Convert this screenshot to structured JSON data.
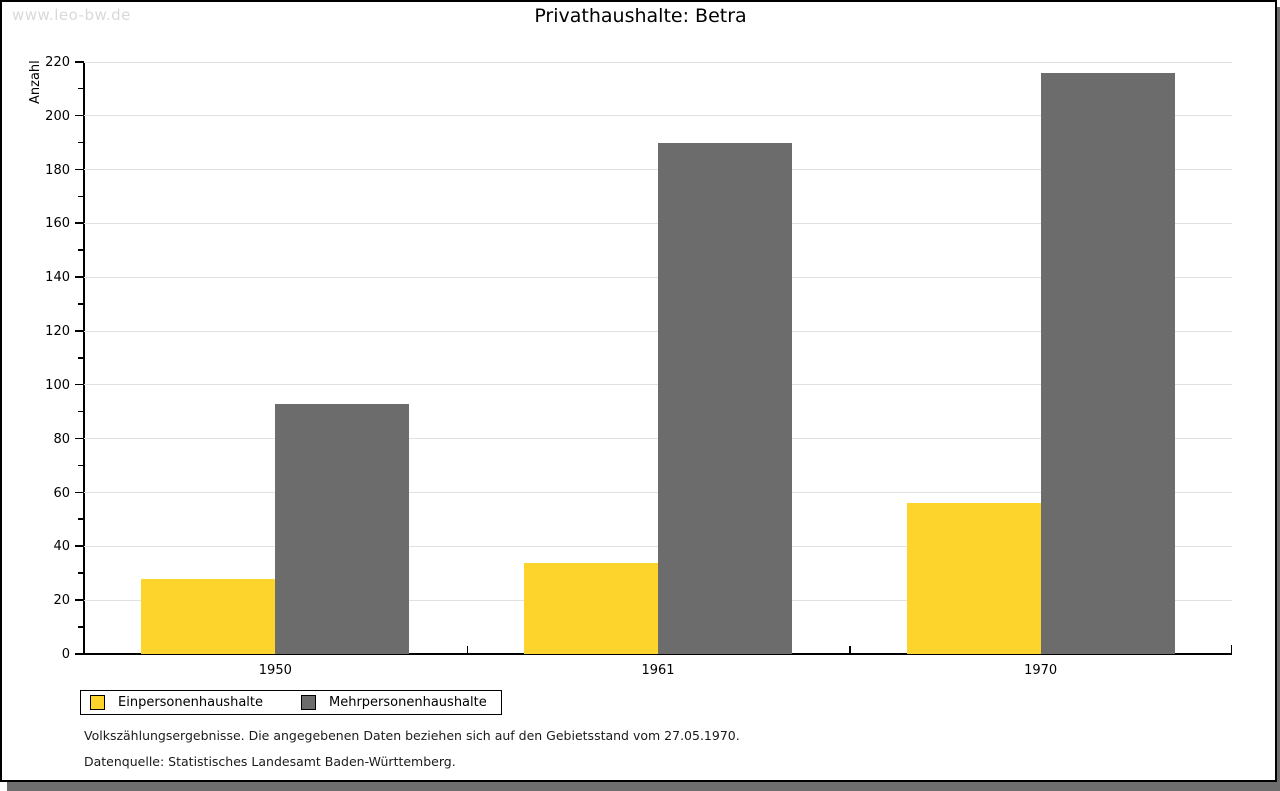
{
  "watermark": "www.leo-bw.de",
  "chart_data": {
    "type": "bar",
    "title": "Privathaushalte: Betra",
    "ylabel": "Anzahl",
    "xlabel": "",
    "categories": [
      "1950",
      "1961",
      "1970"
    ],
    "series": [
      {
        "name": "Einpersonenhaushalte",
        "color": "#FCD42B",
        "values": [
          28,
          34,
          56
        ]
      },
      {
        "name": "Mehrpersonenhaushalte",
        "color": "#6C6C6C",
        "values": [
          93,
          190,
          216
        ]
      }
    ],
    "ylim": [
      0,
      220
    ],
    "ytick_step": 20,
    "yminor_step": 10,
    "grid": "horizontal-major",
    "gridline_color": "#E1E1E1",
    "legend_position": "bottom-left"
  },
  "footnotes": [
    "Volkszählungsergebnisse. Die angegebenen Daten beziehen sich auf den Gebietsstand vom 27.05.1970.",
    "Datenquelle: Statistisches Landesamt Baden-Württemberg."
  ],
  "colors": {
    "background": "#FFFFFF",
    "border": "#000000",
    "shadow": "#6E6E6E",
    "watermark_text": "#D9D9D9",
    "axis": "#000000",
    "text": "#1A1A1A"
  }
}
